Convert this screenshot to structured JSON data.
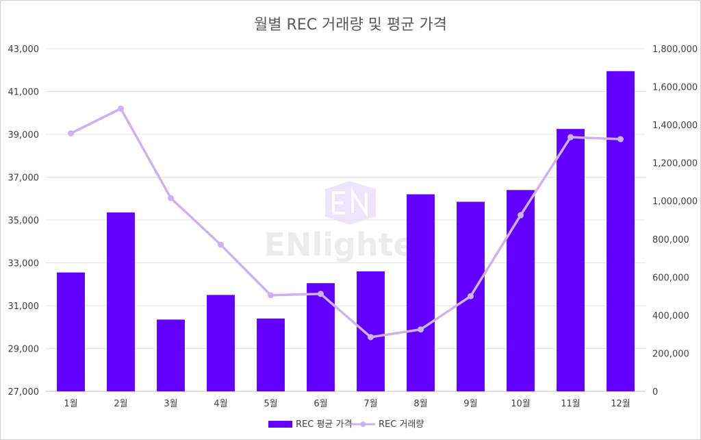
{
  "chart_data": {
    "type": "bar",
    "title": "월별 REC 거래량 및 평균 가격",
    "categories": [
      "1월",
      "2월",
      "3월",
      "4월",
      "5월",
      "6월",
      "7월",
      "8월",
      "9월",
      "10월",
      "11월",
      "12월"
    ],
    "left_axis": {
      "ylim": [
        27000,
        43000
      ],
      "ticks": [
        "27,000",
        "29,000",
        "31,000",
        "33,000",
        "35,000",
        "37,000",
        "39,000",
        "41,000",
        "43,000"
      ]
    },
    "right_axis": {
      "ylim": [
        0,
        1800000
      ],
      "ticks": [
        "0",
        "200,000",
        "400,000",
        "600,000",
        "800,000",
        "1,000,000",
        "1,200,000",
        "1,400,000",
        "1,600,000",
        "1,800,000"
      ]
    },
    "series": [
      {
        "name": "REC 평균 가격",
        "type": "bar",
        "axis": "left",
        "color": "#6200ff",
        "values": [
          32550,
          35350,
          30350,
          31500,
          30400,
          32050,
          32600,
          36200,
          35850,
          36400,
          39250,
          41950
        ]
      },
      {
        "name": "REC 거래량",
        "type": "line",
        "axis": "right",
        "color": "#cdb2ee",
        "values": [
          1355000,
          1485000,
          1015000,
          770000,
          505000,
          512000,
          285000,
          325000,
          500000,
          925000,
          1335000,
          1325000
        ]
      }
    ],
    "grid": true,
    "legend_position": "bottom"
  },
  "watermark": {
    "text": "ENlighten"
  }
}
